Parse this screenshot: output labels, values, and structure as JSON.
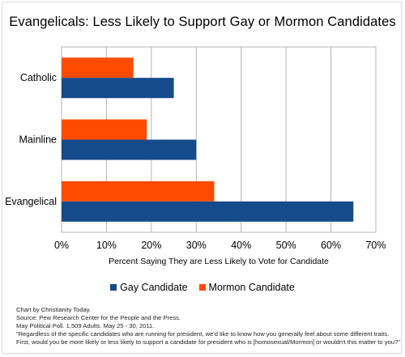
{
  "chart_data": {
    "type": "bar",
    "orientation": "horizontal",
    "title": "Evangelicals: Less Likely to Support Gay or Mormon Candidates",
    "xlabel": "Percent Saying They are Less Likely to Vote for Candidate",
    "ylabel": "",
    "categories": [
      "Catholic",
      "Mainline",
      "Evangelical"
    ],
    "series": [
      {
        "name": "Gay Candidate",
        "color": "#154a8b",
        "values": [
          25,
          30,
          65
        ]
      },
      {
        "name": "Mormon Candidate",
        "color": "#ff4b00",
        "values": [
          16,
          19,
          34
        ]
      }
    ],
    "xlim": [
      0,
      70
    ],
    "x_ticks": [
      0,
      10,
      20,
      30,
      40,
      50,
      60,
      70
    ],
    "x_tick_labels": [
      "0%",
      "10%",
      "20%",
      "30%",
      "40%",
      "50%",
      "60%",
      "70%"
    ],
    "grid": true,
    "legend_position": "bottom"
  },
  "notes": [
    "Chart by Christianity Today.",
    "Source: Pew Research Center for the People and the Press.",
    "May Political Poll. 1,509 Adults. May 25 - 30, 2011.",
    "\"Regardless of the specific candidates who are running for president, we'd like to know how you generally feel about some different traits.",
    "First, would you be more likely or less likely to support a candidate for president who is [homosexual/Mormon] or wouldn't this matter to you?\""
  ]
}
